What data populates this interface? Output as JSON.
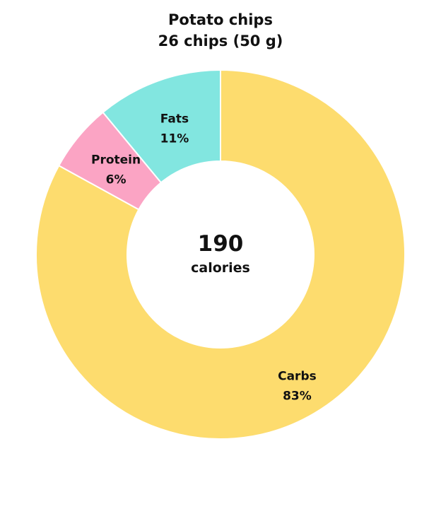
{
  "chart_data": {
    "type": "pie",
    "title": "Potato chips",
    "subtitle": "26 chips (50 g)",
    "center": {
      "value": "190",
      "unit": "calories"
    },
    "slices": [
      {
        "name": "Carbs",
        "value": 83,
        "label": "83%",
        "color": "#FDDC6E"
      },
      {
        "name": "Protein",
        "value": 6,
        "label": "6%",
        "color": "#FBA4C4"
      },
      {
        "name": "Fats",
        "value": 11,
        "label": "11%",
        "color": "#82E6E0"
      }
    ]
  }
}
